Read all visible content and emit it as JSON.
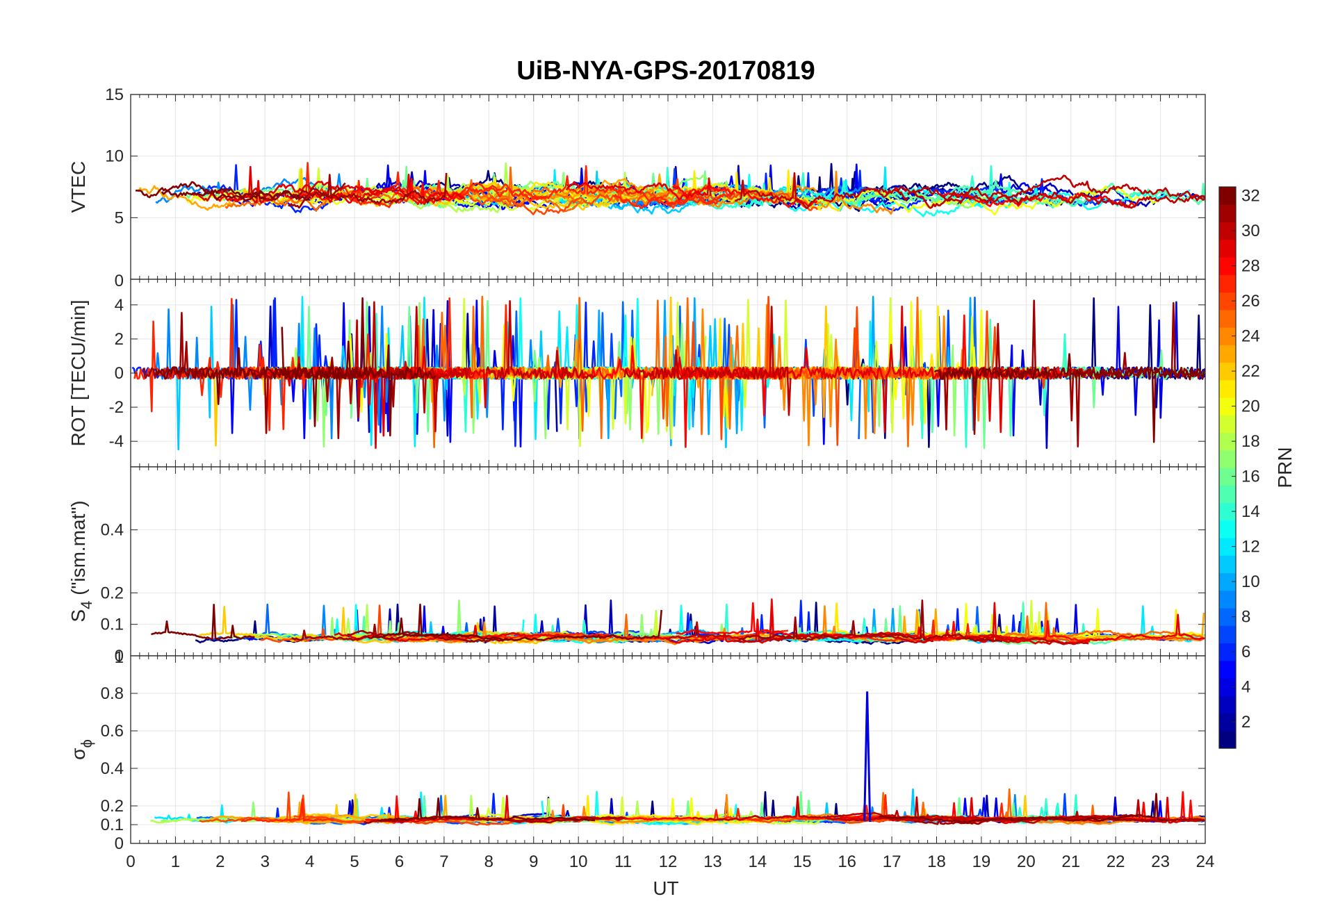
{
  "chart_data": {
    "type": "line",
    "title": "UiB-NYA-GPS-20170819",
    "xlabel": "UT",
    "xlim": [
      0,
      24
    ],
    "x_ticks": [
      "0",
      "1",
      "2",
      "3",
      "4",
      "5",
      "6",
      "7",
      "8",
      "9",
      "10",
      "11",
      "12",
      "13",
      "14",
      "15",
      "16",
      "17",
      "18",
      "19",
      "20",
      "21",
      "22",
      "23",
      "24"
    ],
    "grid": true,
    "panels": [
      {
        "id": "vtec",
        "ylabel": "VTEC",
        "ylim": [
          0,
          15
        ],
        "y_ticks": [
          5,
          10,
          15
        ],
        "y_tick_labels": [
          "5",
          "10",
          "15"
        ],
        "baseline": 6.8,
        "noise": 0.8,
        "spike_rate": 0.01,
        "spike_size": 2.5,
        "floor": 4.2
      },
      {
        "id": "rot",
        "ylabel": "ROT [TECU/min]",
        "ylim": [
          -5.5,
          5.5
        ],
        "y_ticks": [
          -4,
          -2,
          0,
          2,
          4
        ],
        "y_tick_labels": [
          "-4",
          "-2",
          "0",
          "2",
          "4"
        ],
        "top_tick_label": "0",
        "baseline": 0,
        "noise": 0.35,
        "spike_rate": 0.04,
        "spike_size": 4.5
      },
      {
        "id": "s4",
        "ylabel": "S",
        "ylabel_sub": "4",
        "ylabel_tail": " (\"ism.mat\")",
        "ylim": [
          0,
          0.6
        ],
        "y_ticks": [
          0,
          0.1,
          0.2,
          0.4
        ],
        "y_tick_labels": [
          "0",
          "0.1",
          "0.2",
          "0.4"
        ],
        "baseline": 0.06,
        "noise": 0.012,
        "spike_rate": 0.015,
        "spike_size": 0.12,
        "floor": 0.03
      },
      {
        "id": "sigma_phi",
        "ylabel": "σ",
        "ylabel_sub": "ϕ",
        "ylim": [
          0,
          1
        ],
        "y_ticks": [
          0,
          0.1,
          0.2,
          0.4,
          0.6,
          0.8
        ],
        "y_tick_labels": [
          "0",
          "0.1",
          "0.2",
          "0.4",
          "0.6",
          "0.8"
        ],
        "top_tick_label": "1",
        "baseline": 0.13,
        "noise": 0.015,
        "spike_rate": 0.012,
        "spike_size": 0.15,
        "floor": 0.08,
        "notable_peak": {
          "prn": 4,
          "x": 16.45,
          "y": 0.81
        }
      }
    ],
    "series_prns": [
      1,
      2,
      3,
      4,
      5,
      6,
      7,
      8,
      9,
      10,
      11,
      12,
      13,
      14,
      15,
      16,
      17,
      18,
      19,
      20,
      21,
      22,
      23,
      24,
      25,
      26,
      27,
      28,
      29,
      30,
      31,
      32
    ],
    "colorbar": {
      "label": "PRN",
      "range": [
        1,
        32
      ],
      "ticks": [
        "2",
        "4",
        "6",
        "8",
        "10",
        "12",
        "14",
        "16",
        "18",
        "20",
        "22",
        "24",
        "26",
        "28",
        "30",
        "32"
      ],
      "tick_values": [
        2,
        4,
        6,
        8,
        10,
        12,
        14,
        16,
        18,
        20,
        22,
        24,
        26,
        28,
        30,
        32
      ],
      "colormap": "jet"
    }
  }
}
